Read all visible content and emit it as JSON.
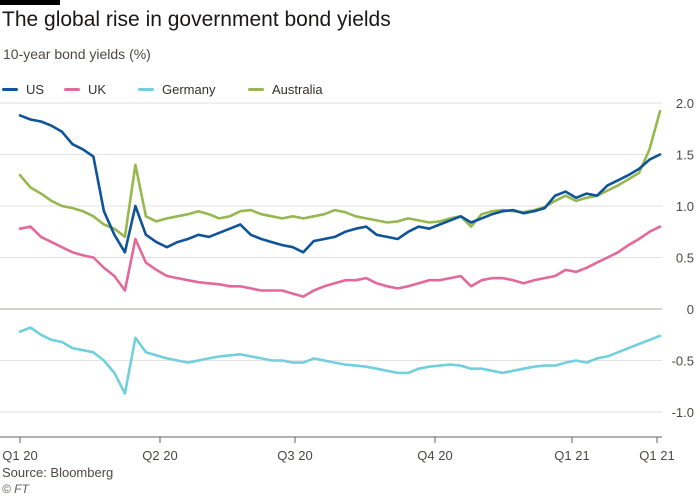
{
  "title": "The global rise in government bond yields",
  "subtitle": "10-year bond yields (%)",
  "source": "Source: Bloomberg",
  "credit": "© FT",
  "chart_data": {
    "type": "line",
    "x_tick_labels": [
      "Q1 20",
      "Q2 20",
      "Q3 20",
      "Q4 20",
      "Q1 21",
      "Q1 21"
    ],
    "y_ticks": [
      -1.0,
      -0.5,
      0,
      0.5,
      1.0,
      1.5,
      2.0
    ],
    "y_tick_labels": [
      "-1.0",
      "-0.5",
      "0",
      "0.5",
      "1.0",
      "1.5",
      "2.0"
    ],
    "ylim": [
      -1.0,
      2.0
    ],
    "x_unit": "weeks from start of 2020",
    "xlim": [
      0,
      61
    ],
    "legend_position": "top-left",
    "grid": "horizontal",
    "series": [
      {
        "name": "US",
        "color": "#0f5499",
        "x": [
          0,
          1,
          2,
          3,
          4,
          5,
          6,
          7,
          8,
          9,
          10,
          11,
          12,
          13,
          14,
          15,
          16,
          17,
          18,
          19,
          20,
          21,
          22,
          23,
          24,
          25,
          26,
          27,
          28,
          29,
          30,
          31,
          32,
          33,
          34,
          35,
          36,
          37,
          38,
          39,
          40,
          41,
          42,
          43,
          44,
          45,
          46,
          47,
          48,
          49,
          50,
          51,
          52,
          53,
          54,
          55,
          56,
          57,
          58,
          59,
          60,
          61
        ],
        "values": [
          1.88,
          1.84,
          1.82,
          1.78,
          1.72,
          1.6,
          1.55,
          1.48,
          0.95,
          0.72,
          0.55,
          1.0,
          0.72,
          0.65,
          0.6,
          0.65,
          0.68,
          0.72,
          0.7,
          0.74,
          0.78,
          0.82,
          0.72,
          0.68,
          0.65,
          0.62,
          0.6,
          0.55,
          0.66,
          0.68,
          0.7,
          0.75,
          0.78,
          0.8,
          0.72,
          0.7,
          0.68,
          0.75,
          0.8,
          0.78,
          0.82,
          0.86,
          0.9,
          0.84,
          0.88,
          0.92,
          0.95,
          0.96,
          0.93,
          0.95,
          0.98,
          1.1,
          1.14,
          1.08,
          1.12,
          1.1,
          1.2,
          1.25,
          1.3,
          1.36,
          1.45,
          1.5
        ]
      },
      {
        "name": "UK",
        "color": "#e3699c",
        "x": [
          0,
          1,
          2,
          3,
          4,
          5,
          6,
          7,
          8,
          9,
          10,
          11,
          12,
          13,
          14,
          15,
          16,
          17,
          18,
          19,
          20,
          21,
          22,
          23,
          24,
          25,
          26,
          27,
          28,
          29,
          30,
          31,
          32,
          33,
          34,
          35,
          36,
          37,
          38,
          39,
          40,
          41,
          42,
          43,
          44,
          45,
          46,
          47,
          48,
          49,
          50,
          51,
          52,
          53,
          54,
          55,
          56,
          57,
          58,
          59,
          60,
          61
        ],
        "values": [
          0.78,
          0.8,
          0.7,
          0.65,
          0.6,
          0.55,
          0.52,
          0.5,
          0.4,
          0.32,
          0.18,
          0.68,
          0.45,
          0.38,
          0.32,
          0.3,
          0.28,
          0.26,
          0.25,
          0.24,
          0.22,
          0.22,
          0.2,
          0.18,
          0.18,
          0.18,
          0.15,
          0.12,
          0.18,
          0.22,
          0.25,
          0.28,
          0.28,
          0.3,
          0.25,
          0.22,
          0.2,
          0.22,
          0.25,
          0.28,
          0.28,
          0.3,
          0.32,
          0.22,
          0.28,
          0.3,
          0.3,
          0.28,
          0.25,
          0.28,
          0.3,
          0.32,
          0.38,
          0.36,
          0.4,
          0.45,
          0.5,
          0.55,
          0.62,
          0.68,
          0.75,
          0.8
        ]
      },
      {
        "name": "Germany",
        "color": "#72d0de",
        "x": [
          0,
          1,
          2,
          3,
          4,
          5,
          6,
          7,
          8,
          9,
          10,
          11,
          12,
          13,
          14,
          15,
          16,
          17,
          18,
          19,
          20,
          21,
          22,
          23,
          24,
          25,
          26,
          27,
          28,
          29,
          30,
          31,
          32,
          33,
          34,
          35,
          36,
          37,
          38,
          39,
          40,
          41,
          42,
          43,
          44,
          45,
          46,
          47,
          48,
          49,
          50,
          51,
          52,
          53,
          54,
          55,
          56,
          57,
          58,
          59,
          60,
          61
        ],
        "values": [
          -0.22,
          -0.18,
          -0.25,
          -0.3,
          -0.32,
          -0.38,
          -0.4,
          -0.42,
          -0.5,
          -0.62,
          -0.82,
          -0.28,
          -0.42,
          -0.45,
          -0.48,
          -0.5,
          -0.52,
          -0.5,
          -0.48,
          -0.46,
          -0.45,
          -0.44,
          -0.46,
          -0.48,
          -0.5,
          -0.5,
          -0.52,
          -0.52,
          -0.48,
          -0.5,
          -0.52,
          -0.54,
          -0.55,
          -0.56,
          -0.58,
          -0.6,
          -0.62,
          -0.62,
          -0.58,
          -0.56,
          -0.55,
          -0.54,
          -0.55,
          -0.58,
          -0.58,
          -0.6,
          -0.62,
          -0.6,
          -0.58,
          -0.56,
          -0.55,
          -0.55,
          -0.52,
          -0.5,
          -0.52,
          -0.48,
          -0.46,
          -0.42,
          -0.38,
          -0.34,
          -0.3,
          -0.26
        ]
      },
      {
        "name": "Australia",
        "color": "#96b84e",
        "x": [
          0,
          1,
          2,
          3,
          4,
          5,
          6,
          7,
          8,
          9,
          10,
          11,
          12,
          13,
          14,
          15,
          16,
          17,
          18,
          19,
          20,
          21,
          22,
          23,
          24,
          25,
          26,
          27,
          28,
          29,
          30,
          31,
          32,
          33,
          34,
          35,
          36,
          37,
          38,
          39,
          40,
          41,
          42,
          43,
          44,
          45,
          46,
          47,
          48,
          49,
          50,
          51,
          52,
          53,
          54,
          55,
          56,
          57,
          58,
          59,
          60,
          61
        ],
        "values": [
          1.3,
          1.18,
          1.12,
          1.05,
          1.0,
          0.98,
          0.95,
          0.9,
          0.82,
          0.78,
          0.7,
          1.4,
          0.9,
          0.85,
          0.88,
          0.9,
          0.92,
          0.95,
          0.92,
          0.88,
          0.9,
          0.95,
          0.96,
          0.92,
          0.9,
          0.88,
          0.9,
          0.88,
          0.9,
          0.92,
          0.96,
          0.94,
          0.9,
          0.88,
          0.86,
          0.84,
          0.85,
          0.88,
          0.86,
          0.84,
          0.85,
          0.88,
          0.9,
          0.8,
          0.92,
          0.95,
          0.96,
          0.95,
          0.94,
          0.96,
          0.99,
          1.05,
          1.1,
          1.05,
          1.08,
          1.1,
          1.15,
          1.2,
          1.26,
          1.32,
          1.55,
          1.92
        ]
      }
    ]
  }
}
